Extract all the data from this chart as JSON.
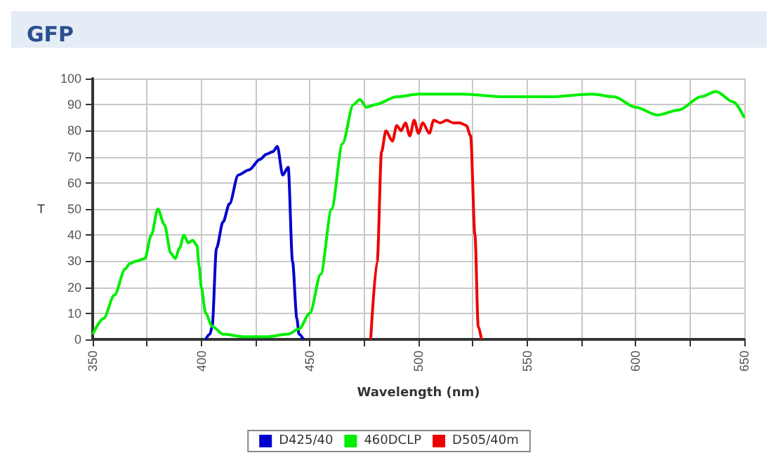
{
  "chart_data": {
    "type": "line",
    "title": "GFP",
    "xlabel": "Wavelength (nm)",
    "ylabel": "T",
    "xlim": [
      350,
      650
    ],
    "xticks": [
      350,
      {
        "value": 375,
        "label": null
      },
      400,
      {
        "value": 425,
        "label": null
      },
      450,
      {
        "value": 475,
        "label": null
      },
      500,
      {
        "value": 525,
        "label": null
      },
      550,
      {
        "value": 575,
        "label": null
      },
      600,
      {
        "value": 625,
        "label": null
      },
      650
    ],
    "ylim": [
      0,
      100
    ],
    "yticks": [
      0,
      10,
      20,
      30,
      40,
      50,
      60,
      70,
      80,
      90,
      100
    ],
    "grid": true,
    "legend": "bottom",
    "marker": "none",
    "line_style": "solid",
    "series": [
      {
        "name": "D425/40",
        "color": "#0000cc",
        "x": [
          402,
          404,
          405,
          407,
          410,
          413,
          417,
          422,
          427,
          430,
          433,
          435,
          437.5,
          440,
          442,
          444,
          445,
          447
        ],
        "values": [
          0,
          2,
          5,
          35,
          45,
          52,
          63,
          65,
          69,
          71,
          72,
          74,
          63,
          66,
          30,
          8,
          2,
          0
        ]
      },
      {
        "name": "460DCLP",
        "color": "#00ee00",
        "x": [
          350,
          355,
          360,
          365,
          367,
          370,
          374,
          377,
          380,
          383,
          386,
          388,
          390,
          392,
          394,
          396,
          398,
          399,
          400,
          402,
          405,
          410,
          420,
          430,
          440,
          445,
          450,
          455,
          460,
          465,
          470,
          473,
          476,
          480,
          490,
          500,
          520,
          540,
          560,
          580,
          590,
          600,
          610,
          620,
          630,
          637,
          645,
          650
        ],
        "values": [
          2,
          8,
          17,
          27,
          29,
          30,
          31,
          40,
          50,
          44,
          33,
          31,
          35,
          40,
          37,
          38,
          36,
          28,
          20,
          10,
          5,
          2,
          1,
          1,
          2,
          4,
          10,
          25,
          50,
          75,
          90,
          92,
          89,
          90,
          93,
          94,
          94,
          93,
          93,
          94,
          93,
          89,
          86,
          88,
          93,
          95,
          91,
          85
        ]
      },
      {
        "name": "D505/40m",
        "color": "#ee0000",
        "x": [
          478,
          481,
          483,
          485,
          488,
          490,
          492,
          494,
          496,
          498,
          500,
          502,
          505,
          507,
          510,
          513,
          516,
          519,
          522,
          524,
          526,
          527.5,
          529
        ],
        "values": [
          0,
          30,
          72,
          80,
          76,
          82,
          80,
          83,
          78,
          84,
          79,
          83,
          79,
          84,
          83,
          84,
          83,
          83,
          82,
          78,
          40,
          5,
          0
        ]
      }
    ]
  }
}
